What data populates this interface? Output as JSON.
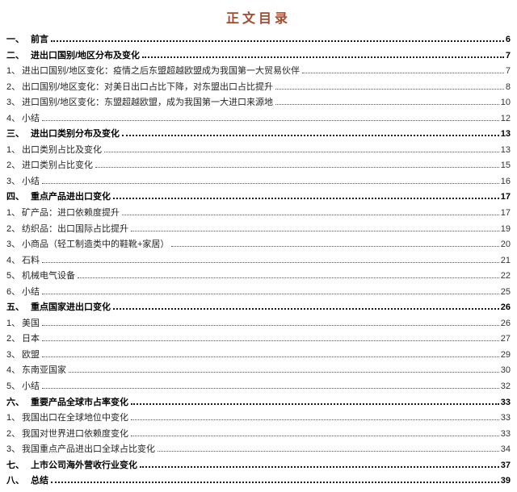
{
  "page": {
    "title": "正文目录",
    "title_color": "#a8492c"
  },
  "toc": {
    "entries": [
      {
        "level": 1,
        "num": "一、",
        "label": "前言",
        "page": "6"
      },
      {
        "level": 1,
        "num": "二、",
        "label": "进出口国别/地区分布及变化",
        "page": "7"
      },
      {
        "level": 2,
        "num": "1、",
        "label": "进出口国别/地区变化：疫情之后东盟超越欧盟成为我国第一大贸易伙伴",
        "page": "7"
      },
      {
        "level": 2,
        "num": "2、",
        "label": "出口国别/地区变化：对美日出口占比下降，对东盟出口占比提升",
        "page": "8"
      },
      {
        "level": 2,
        "num": "3、",
        "label": "进口国别/地区变化：东盟超越欧盟，成为我国第一大进口来源地",
        "page": "10"
      },
      {
        "level": 2,
        "num": "4、",
        "label": "小结",
        "page": "12"
      },
      {
        "level": 1,
        "num": "三、",
        "label": "进出口类别分布及变化",
        "page": "13"
      },
      {
        "level": 2,
        "num": "1、",
        "label": "出口类别占比及变化",
        "page": "13"
      },
      {
        "level": 2,
        "num": "2、",
        "label": "进口类别占比变化",
        "page": "15"
      },
      {
        "level": 2,
        "num": "3、",
        "label": "小结",
        "page": "16"
      },
      {
        "level": 1,
        "num": "四、",
        "label": "重点产品进出口变化",
        "page": "17"
      },
      {
        "level": 2,
        "num": "1、",
        "label": "矿产品：进口依赖度提升",
        "page": "17"
      },
      {
        "level": 2,
        "num": "2、",
        "label": "纺织品：出口国际占比提升",
        "page": "19"
      },
      {
        "level": 2,
        "num": "3、",
        "label": "小商品（轻工制造类中的鞋靴+家居）",
        "page": "20"
      },
      {
        "level": 2,
        "num": "4、",
        "label": "石料",
        "page": "21"
      },
      {
        "level": 2,
        "num": "5、",
        "label": "机械电气设备",
        "page": "22"
      },
      {
        "level": 2,
        "num": "6、",
        "label": "小结",
        "page": "25"
      },
      {
        "level": 1,
        "num": "五、",
        "label": "重点国家进出口变化",
        "page": "26"
      },
      {
        "level": 2,
        "num": "1、",
        "label": "美国",
        "page": "26"
      },
      {
        "level": 2,
        "num": "2、",
        "label": "日本",
        "page": "27"
      },
      {
        "level": 2,
        "num": "3、",
        "label": "欧盟",
        "page": "29"
      },
      {
        "level": 2,
        "num": "4、",
        "label": "东南亚国家",
        "page": "30"
      },
      {
        "level": 2,
        "num": "5、",
        "label": "小结",
        "page": "32"
      },
      {
        "level": 1,
        "num": "六、",
        "label": "重要产品全球市占率变化",
        "page": "33"
      },
      {
        "level": 2,
        "num": "1、",
        "label": "我国出口在全球地位中变化",
        "page": "33"
      },
      {
        "level": 2,
        "num": "2、",
        "label": "我国对世界进口依赖度变化",
        "page": "33"
      },
      {
        "level": 2,
        "num": "3、",
        "label": "我国重点产品进出口全球占比变化",
        "page": "34"
      },
      {
        "level": 1,
        "num": "七、",
        "label": "上市公司海外营收行业变化",
        "page": "37"
      },
      {
        "level": 1,
        "num": "八、",
        "label": "总结",
        "page": "39"
      }
    ]
  }
}
